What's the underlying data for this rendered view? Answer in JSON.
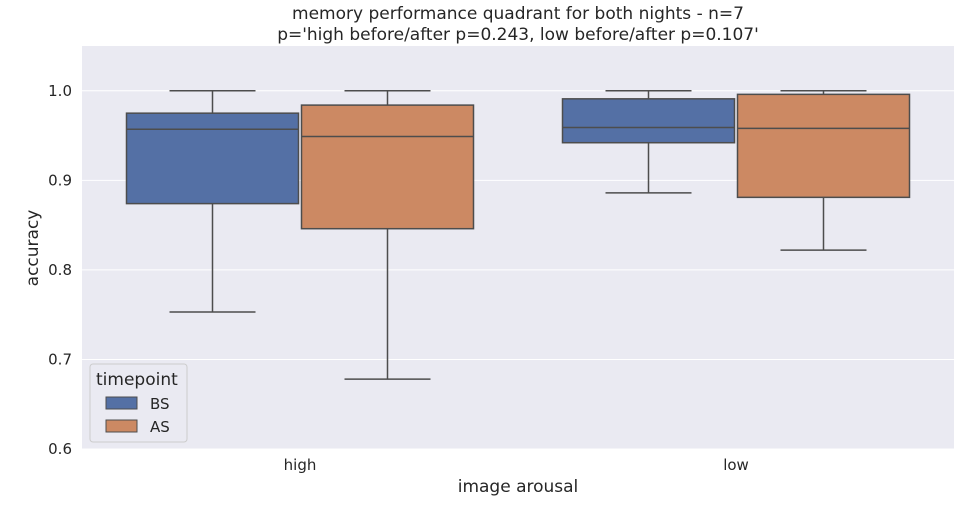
{
  "chart_data": {
    "type": "box",
    "title": "memory performance quadrant for both nights - n=7",
    "subtitle": "p='high before/after p=0.243, low before/after p=0.107'",
    "xlabel": "image arousal",
    "ylabel": "accuracy",
    "categories": [
      "high",
      "low"
    ],
    "ylim": [
      0.6,
      1.05
    ],
    "yticks": [
      0.6,
      0.7,
      0.8,
      0.9,
      1.0
    ],
    "ytick_labels": [
      "0.6",
      "0.7",
      "0.8",
      "0.9",
      "1.0"
    ],
    "grid": true,
    "legend": {
      "title": "timepoint",
      "placement": "lower-left"
    },
    "series": [
      {
        "name": "BS",
        "color": "#5470a5",
        "boxes": [
          {
            "category": "high",
            "whisker_low": 0.753,
            "q1": 0.874,
            "median": 0.957,
            "q3": 0.975,
            "whisker_high": 1.0
          },
          {
            "category": "low",
            "whisker_low": 0.886,
            "q1": 0.942,
            "median": 0.959,
            "q3": 0.991,
            "whisker_high": 1.0
          }
        ]
      },
      {
        "name": "AS",
        "color": "#cc8963",
        "boxes": [
          {
            "category": "high",
            "whisker_low": 0.678,
            "q1": 0.846,
            "median": 0.949,
            "q3": 0.984,
            "whisker_high": 1.0
          },
          {
            "category": "low",
            "whisker_low": 0.822,
            "q1": 0.881,
            "median": 0.958,
            "q3": 0.996,
            "whisker_high": 1.0
          }
        ]
      }
    ]
  }
}
